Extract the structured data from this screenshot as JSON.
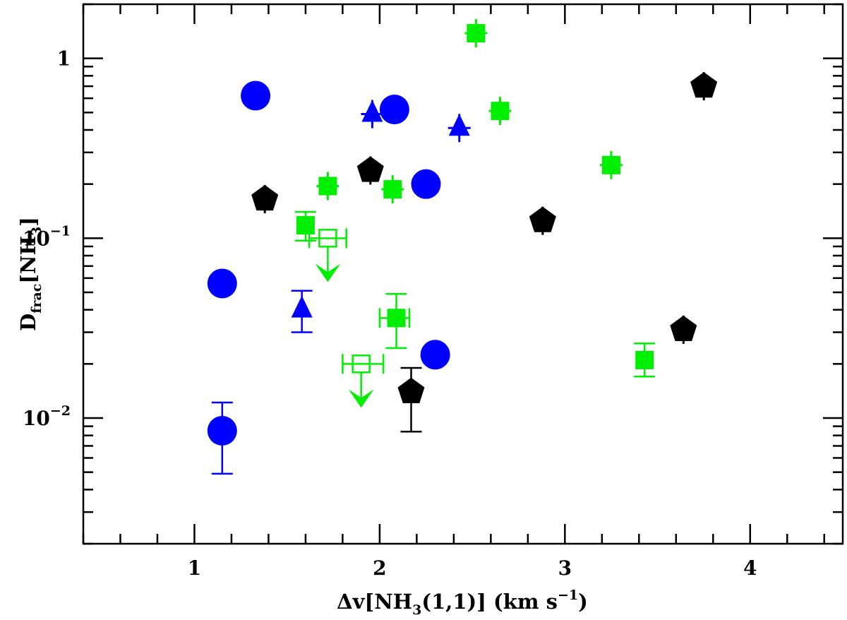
{
  "chart_data": {
    "type": "scatter",
    "title": "",
    "xlabel": "Δv[NH3(1,1)] (km s−1)",
    "ylabel": "Dfrac[NH3]",
    "x_axis_label_parts": {
      "prefix": "Δv[NH",
      "sub": "3",
      "mid": "(1,1)] (km s",
      "sup": "−1",
      "suffix": ")"
    },
    "y_axis_label_parts": {
      "prefix": "D",
      "sub1": "frac",
      "mid": "[NH",
      "sub2": "3",
      "suffix": "]"
    },
    "xlim": [
      0.4,
      4.5
    ],
    "ylim": [
      0.002,
      2.0
    ],
    "y_scale": "log",
    "x_tick_labels": [
      {
        "v": 1,
        "label": "1"
      },
      {
        "v": 2,
        "label": "2"
      },
      {
        "v": 3,
        "label": "3"
      },
      {
        "v": 4,
        "label": "4"
      }
    ],
    "y_tick_labels": [
      {
        "v": 1,
        "base": "1",
        "exp": ""
      },
      {
        "v": 0.1,
        "base": "10",
        "exp": "−1"
      },
      {
        "v": 0.01,
        "base": "10",
        "exp": "−2"
      }
    ],
    "grid": false,
    "colors": {
      "blue": "#0000ff",
      "green": "#00ee00",
      "black": "#000000"
    },
    "series": [
      {
        "marker": "circle",
        "color": "#0000ff",
        "points": [
          {
            "x": 1.15,
            "y": 0.0085,
            "ylo": 0.0049,
            "yhi": 0.0122
          },
          {
            "x": 1.15,
            "y": 0.056
          },
          {
            "x": 1.33,
            "y": 0.62
          },
          {
            "x": 2.08,
            "y": 0.52
          },
          {
            "x": 2.25,
            "y": 0.2
          },
          {
            "x": 2.3,
            "y": 0.0225
          }
        ]
      },
      {
        "marker": "triangle",
        "color": "#0000ff",
        "points": [
          {
            "x": 1.58,
            "y": 0.04,
            "ylo": 0.03,
            "yhi": 0.051
          },
          {
            "x": 1.96,
            "y": 0.49
          },
          {
            "x": 2.43,
            "y": 0.41
          }
        ]
      },
      {
        "marker": "square",
        "color": "#00ee00",
        "points": [
          {
            "x": 1.6,
            "y": 0.118,
            "ylo": 0.097,
            "yhi": 0.14
          },
          {
            "x": 1.72,
            "y": 0.195
          },
          {
            "x": 2.07,
            "y": 0.187
          },
          {
            "x": 2.09,
            "y": 0.036,
            "ylo": 0.0245,
            "yhi": 0.049,
            "xlo": 2.0,
            "xhi": 2.16
          },
          {
            "x": 2.52,
            "y": 1.38
          },
          {
            "x": 2.65,
            "y": 0.51
          },
          {
            "x": 3.25,
            "y": 0.255
          },
          {
            "x": 3.43,
            "y": 0.021,
            "ylo": 0.017,
            "yhi": 0.026
          }
        ]
      },
      {
        "marker": "open-square-upper-limit",
        "color": "#00ee00",
        "points": [
          {
            "x": 1.72,
            "y": 0.1,
            "xlo": 1.62,
            "xhi": 1.82
          },
          {
            "x": 1.9,
            "y": 0.02,
            "xlo": 1.8,
            "xhi": 2.02
          }
        ]
      },
      {
        "marker": "pentagon",
        "color": "#000000",
        "points": [
          {
            "x": 1.38,
            "y": 0.165
          },
          {
            "x": 1.95,
            "y": 0.238
          },
          {
            "x": 2.17,
            "y": 0.014,
            "ylo": 0.0084,
            "yhi": 0.019
          },
          {
            "x": 2.88,
            "y": 0.125
          },
          {
            "x": 3.64,
            "y": 0.031
          },
          {
            "x": 3.75,
            "y": 0.7
          }
        ]
      }
    ]
  }
}
